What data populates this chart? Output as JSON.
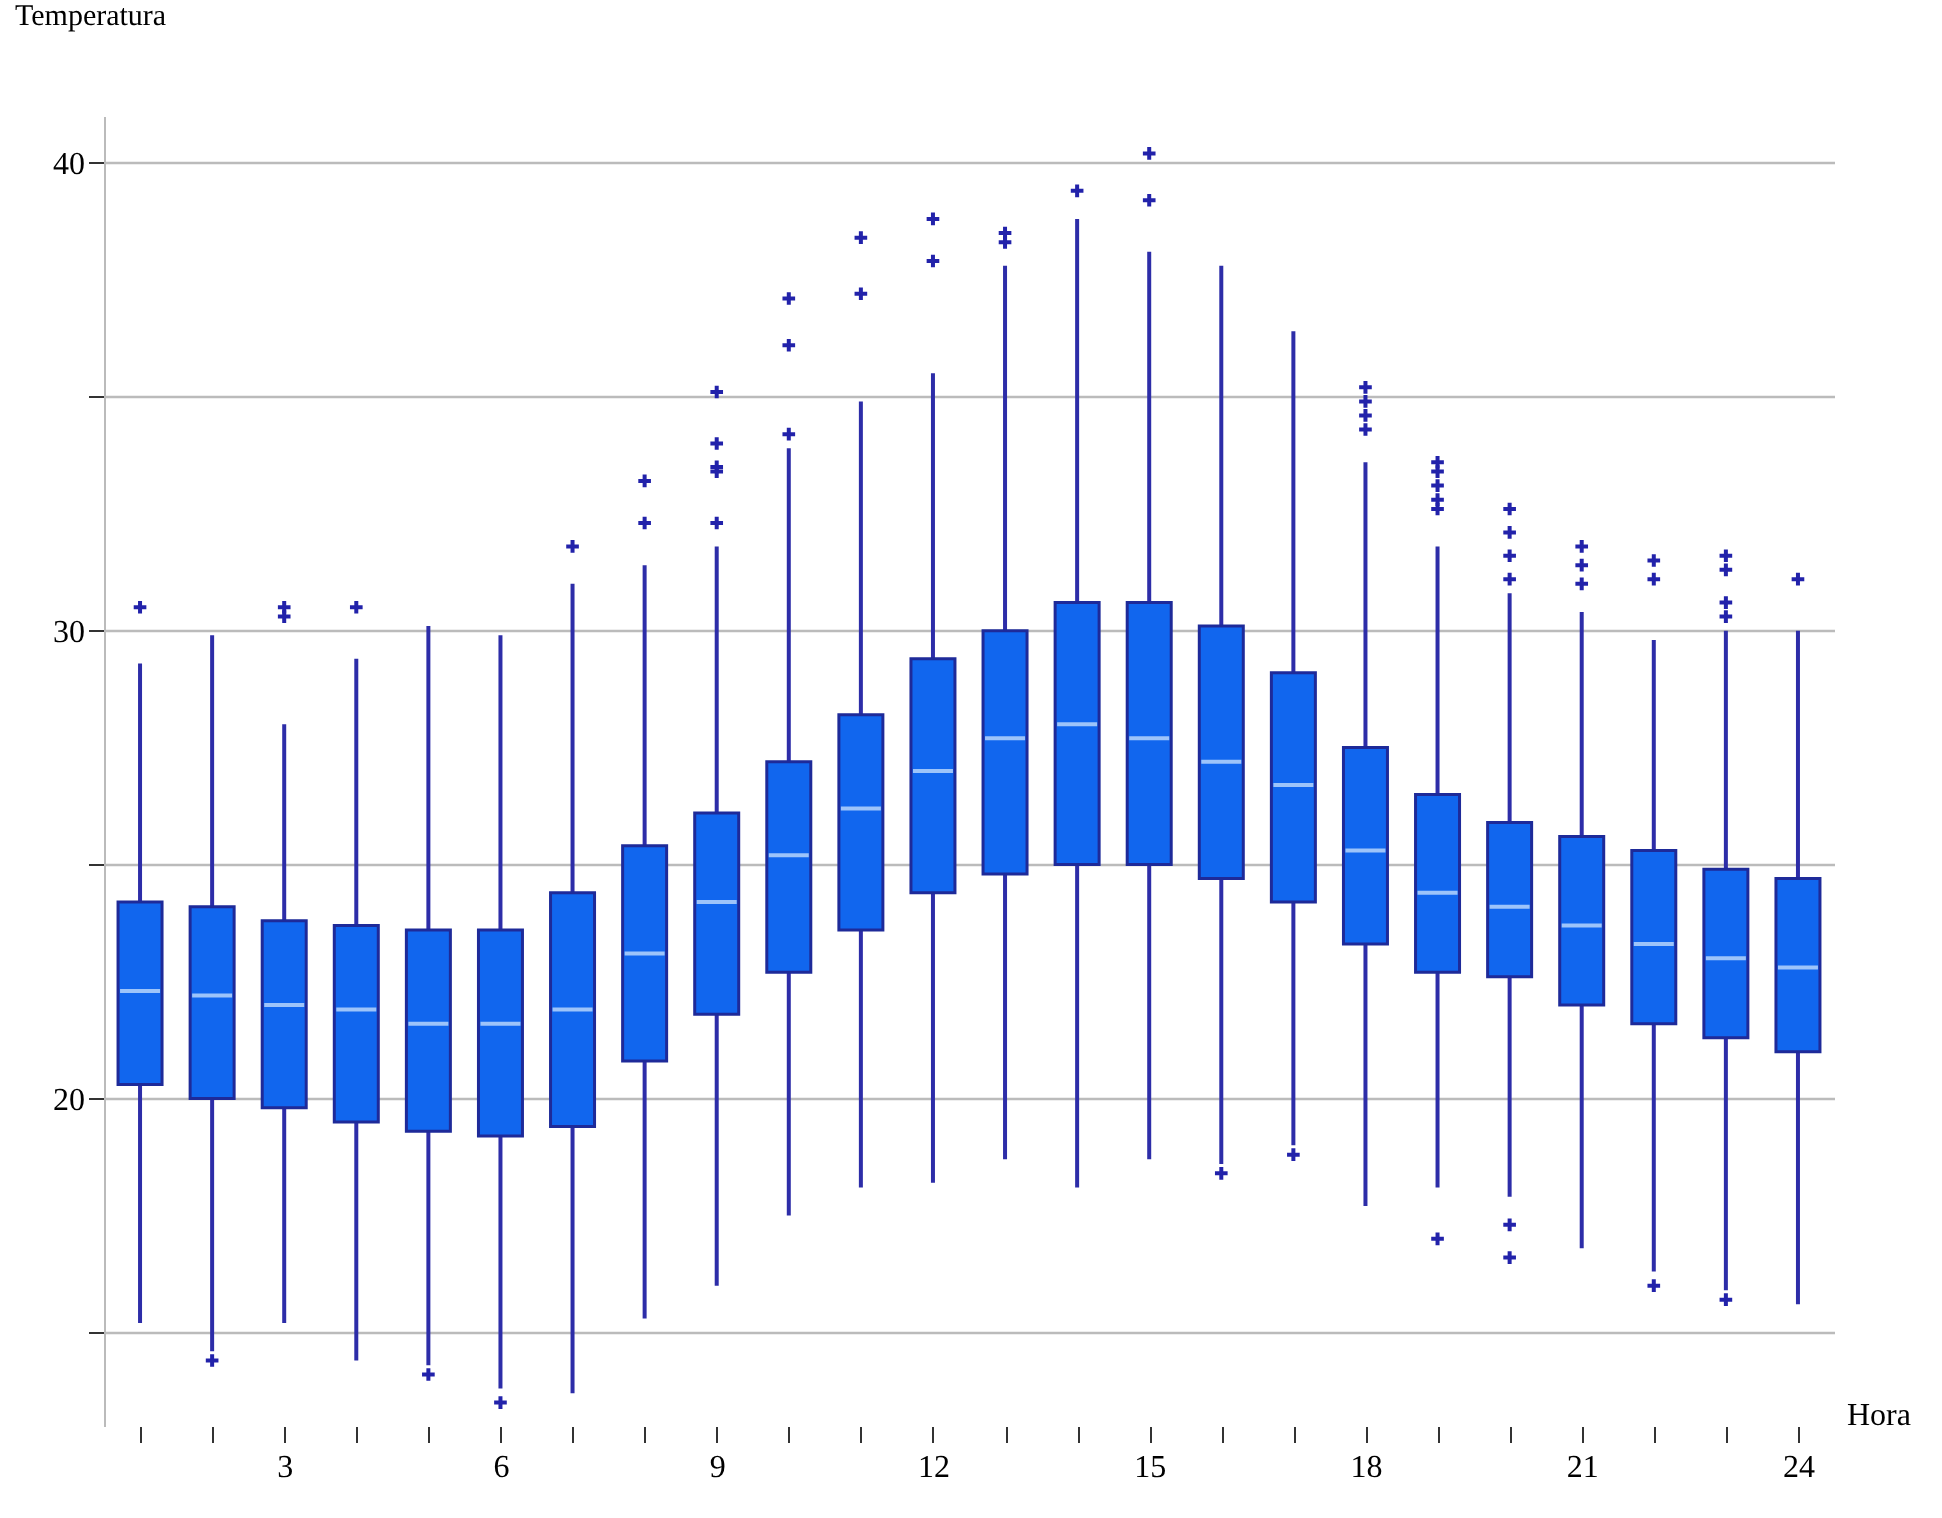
{
  "chart_data": {
    "type": "box",
    "xlabel": "Hora",
    "ylabel": "Temperatura",
    "categories": [
      null,
      null,
      "3",
      null,
      null,
      "6",
      null,
      null,
      "9",
      null,
      null,
      "12",
      null,
      null,
      "15",
      null,
      null,
      "18",
      null,
      null,
      "21",
      null,
      null,
      "24"
    ],
    "color": "#1166ee",
    "ylim": [
      13,
      41
    ],
    "yticks": [
      {
        "value": 15,
        "label": null
      },
      20,
      {
        "value": 25,
        "label": null
      },
      30,
      {
        "value": 35,
        "label": null
      },
      40
    ],
    "grid": "y",
    "marker": "cross",
    "boxes": [
      {
        "low": 15.2,
        "q1": 20.3,
        "median": 22.3,
        "q3": 24.2,
        "high": 29.3,
        "outliers": [
          30.5
        ]
      },
      {
        "low": 14.6,
        "q1": 20.0,
        "median": 22.2,
        "q3": 24.1,
        "high": 29.9,
        "outliers": [
          14.4
        ]
      },
      {
        "low": 15.2,
        "q1": 19.8,
        "median": 22.0,
        "q3": 23.8,
        "high": 28.0,
        "outliers": [
          30.5,
          30.3
        ]
      },
      {
        "low": 14.4,
        "q1": 19.5,
        "median": 21.9,
        "q3": 23.7,
        "high": 29.4,
        "outliers": [
          30.5
        ]
      },
      {
        "low": 14.3,
        "q1": 19.3,
        "median": 21.6,
        "q3": 23.6,
        "high": 30.1,
        "outliers": [
          14.1
        ]
      },
      {
        "low": 13.8,
        "q1": 19.2,
        "median": 21.6,
        "q3": 23.6,
        "high": 29.9,
        "outliers": [
          13.5
        ]
      },
      {
        "low": 13.7,
        "q1": 19.4,
        "median": 21.9,
        "q3": 24.4,
        "high": 31.0,
        "outliers": [
          31.8
        ]
      },
      {
        "low": 15.3,
        "q1": 20.8,
        "median": 23.1,
        "q3": 25.4,
        "high": 31.4,
        "outliers": [
          33.2,
          32.3
        ]
      },
      {
        "low": 16.0,
        "q1": 21.8,
        "median": 24.2,
        "q3": 26.1,
        "high": 31.8,
        "outliers": [
          35.1,
          34.0,
          33.5,
          33.4,
          32.3
        ]
      },
      {
        "low": 17.5,
        "q1": 22.7,
        "median": 25.2,
        "q3": 27.2,
        "high": 33.9,
        "outliers": [
          37.1,
          36.1,
          34.2
        ]
      },
      {
        "low": 18.1,
        "q1": 23.6,
        "median": 26.2,
        "q3": 28.2,
        "high": 34.9,
        "outliers": [
          38.4,
          37.2
        ]
      },
      {
        "low": 18.2,
        "q1": 24.4,
        "median": 27.0,
        "q3": 29.4,
        "high": 35.5,
        "outliers": [
          38.8,
          37.9
        ]
      },
      {
        "low": 18.7,
        "q1": 24.8,
        "median": 27.7,
        "q3": 30.0,
        "high": 37.8,
        "outliers": [
          38.5,
          38.3
        ]
      },
      {
        "low": 18.1,
        "q1": 25.0,
        "median": 28.0,
        "q3": 30.6,
        "high": 38.8,
        "outliers": [
          39.4
        ]
      },
      {
        "low": 18.7,
        "q1": 25.0,
        "median": 27.7,
        "q3": 30.6,
        "high": 38.1,
        "outliers": [
          40.2,
          39.2
        ]
      },
      {
        "low": 18.6,
        "q1": 24.7,
        "median": 27.2,
        "q3": 30.1,
        "high": 37.8,
        "outliers": [
          18.4
        ]
      },
      {
        "low": 19.0,
        "q1": 24.2,
        "median": 26.7,
        "q3": 29.1,
        "high": 36.4,
        "outliers": [
          18.8
        ]
      },
      {
        "low": 17.7,
        "q1": 23.3,
        "median": 25.3,
        "q3": 27.5,
        "high": 33.6,
        "outliers": [
          35.2,
          34.9,
          34.6,
          34.3
        ]
      },
      {
        "low": 18.1,
        "q1": 22.7,
        "median": 24.4,
        "q3": 26.5,
        "high": 31.8,
        "outliers": [
          33.6,
          33.4,
          33.1,
          32.8,
          32.6,
          17.0
        ]
      },
      {
        "low": 17.9,
        "q1": 22.6,
        "median": 24.1,
        "q3": 25.9,
        "high": 30.8,
        "outliers": [
          32.6,
          32.1,
          31.6,
          31.1,
          17.3,
          16.6
        ]
      },
      {
        "low": 16.8,
        "q1": 22.0,
        "median": 23.7,
        "q3": 25.6,
        "high": 30.4,
        "outliers": [
          31.8,
          31.4,
          31.0
        ]
      },
      {
        "low": 16.3,
        "q1": 21.6,
        "median": 23.3,
        "q3": 25.3,
        "high": 29.8,
        "outliers": [
          31.5,
          31.1,
          16.0
        ]
      },
      {
        "low": 15.9,
        "q1": 21.3,
        "median": 23.0,
        "q3": 24.9,
        "high": 30.0,
        "outliers": [
          31.6,
          31.3,
          30.6,
          30.3,
          15.7
        ]
      },
      {
        "low": 15.6,
        "q1": 21.0,
        "median": 22.8,
        "q3": 24.7,
        "high": 30.0,
        "outliers": [
          31.1
        ]
      }
    ]
  }
}
